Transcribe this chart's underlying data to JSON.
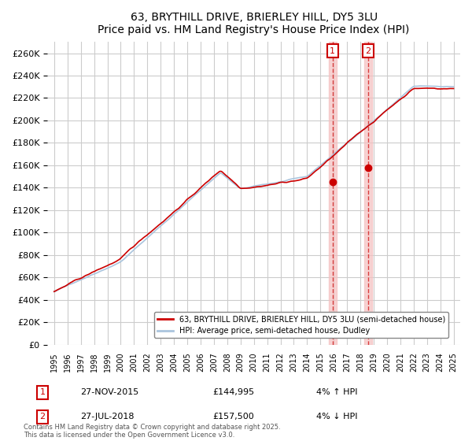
{
  "title": "63, BRYTHILL DRIVE, BRIERLEY HILL, DY5 3LU",
  "subtitle": "Price paid vs. HM Land Registry's House Price Index (HPI)",
  "legend_label_red": "63, BRYTHILL DRIVE, BRIERLEY HILL, DY5 3LU (semi-detached house)",
  "legend_label_blue": "HPI: Average price, semi-detached house, Dudley",
  "sale1_date": "27-NOV-2015",
  "sale1_price": 144995,
  "sale1_label": "4% ↑ HPI",
  "sale2_date": "27-JUL-2018",
  "sale2_price": 157500,
  "sale2_label": "4% ↓ HPI",
  "footnote": "Contains HM Land Registry data © Crown copyright and database right 2025.\nThis data is licensed under the Open Government Licence v3.0.",
  "ylim": [
    0,
    270000
  ],
  "yticks": [
    0,
    20000,
    40000,
    60000,
    80000,
    100000,
    120000,
    140000,
    160000,
    180000,
    200000,
    220000,
    240000,
    260000
  ],
  "red_color": "#cc0000",
  "blue_color": "#aac4dd",
  "background_color": "#ffffff",
  "grid_color": "#cccccc",
  "shade_color": "#f5c0c0"
}
